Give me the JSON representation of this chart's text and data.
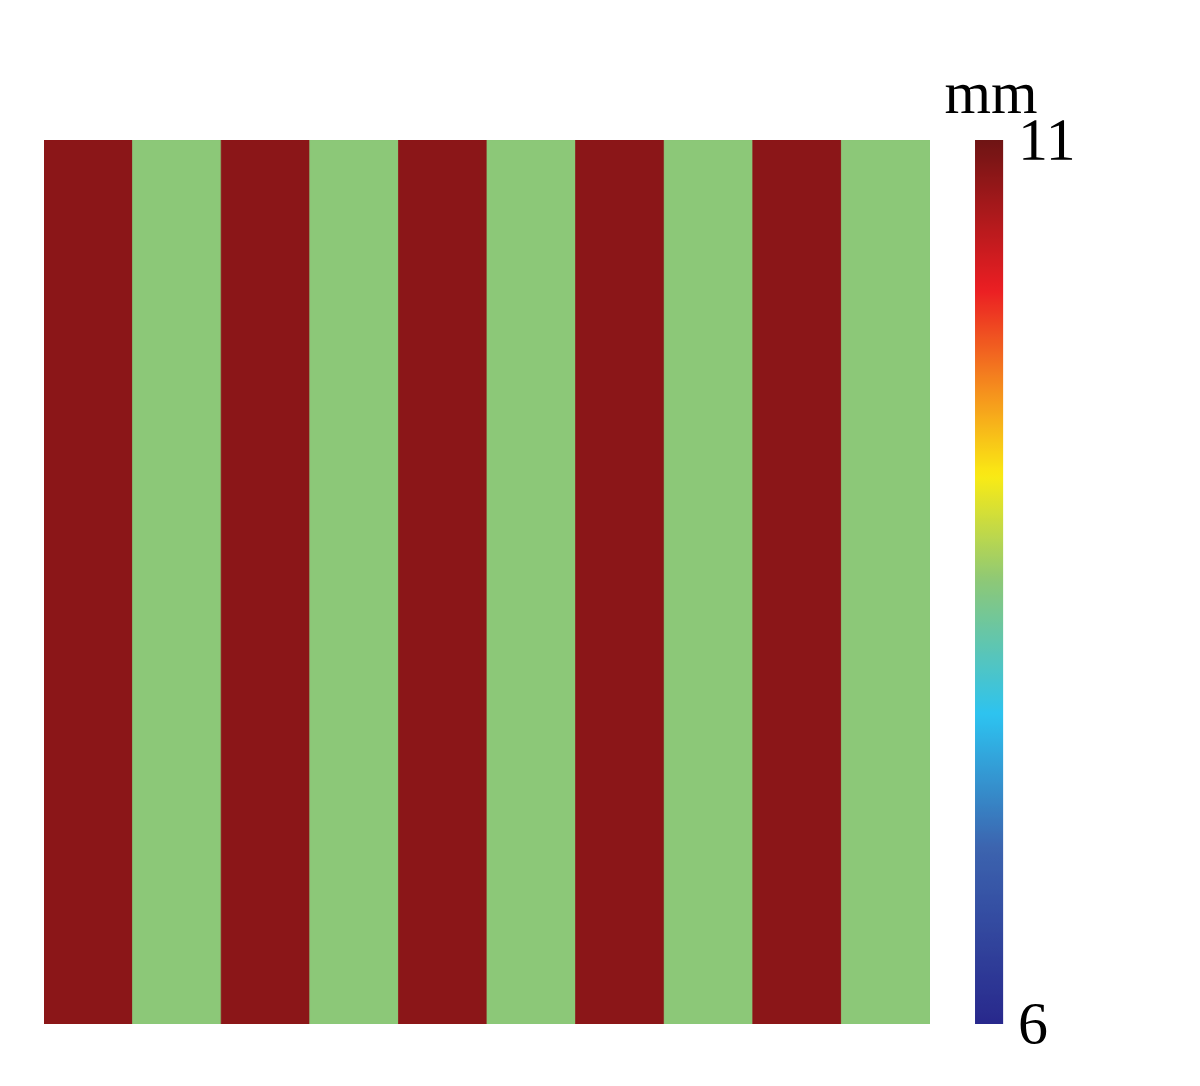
{
  "chart_data": {
    "type": "heatmap",
    "clabel": "mm",
    "categories": [
      null,
      null,
      null,
      null,
      null,
      null,
      null,
      null,
      null,
      null
    ],
    "y_categories": [
      null
    ],
    "cells": [
      [
        10.8,
        8.5,
        10.8,
        8.5,
        10.8,
        8.5,
        10.8,
        8.5,
        10.8,
        8.5
      ]
    ],
    "clim": [
      6,
      11
    ],
    "cticks": [
      6,
      11
    ]
  }
}
